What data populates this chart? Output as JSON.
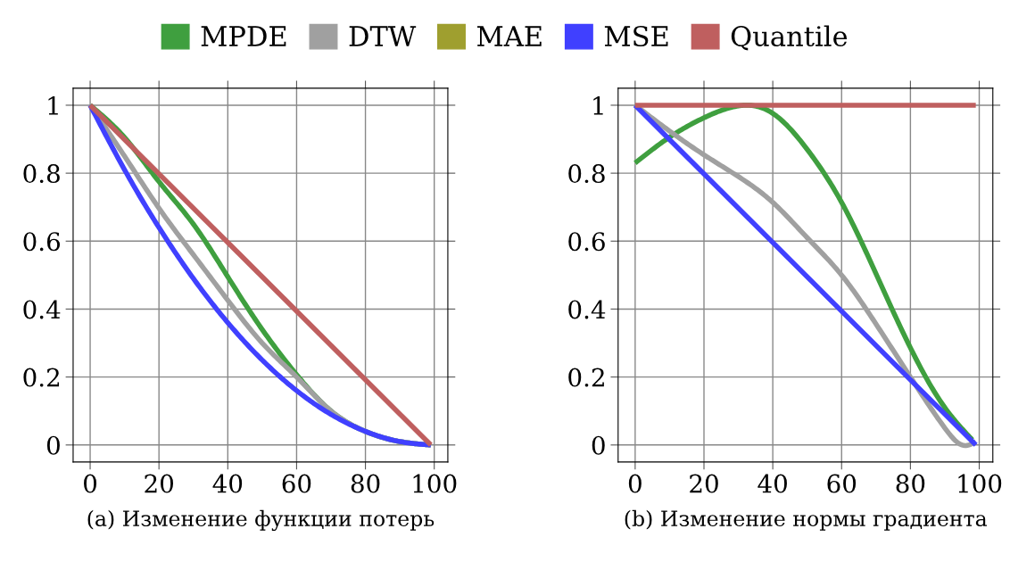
{
  "chart_data": [
    {
      "type": "line",
      "xlabel": "(a) Изменение функции потерь",
      "legend": "top",
      "grid": true,
      "line_style": "solid",
      "xlim": [
        -4.95,
        103.95
      ],
      "ylim": [
        -0.05,
        1.05
      ],
      "xticks": [
        0,
        20,
        40,
        60,
        80,
        100
      ],
      "yticks": [
        0,
        0.2,
        0.4,
        0.6,
        0.8,
        1
      ],
      "series": [
        {
          "name": "MPDE",
          "color": "#3f9f3f",
          "x": [
            0,
            10,
            20,
            30,
            40,
            50,
            60,
            70,
            80,
            90,
            99
          ],
          "values": [
            1,
            0.905,
            0.775,
            0.65,
            0.495,
            0.34,
            0.207,
            0.1,
            0.04,
            0.01,
            0
          ]
        },
        {
          "name": "DTW",
          "color": "#a0a0a0",
          "x": [
            0,
            10,
            20,
            30,
            40,
            50,
            60,
            70,
            80,
            90,
            99
          ],
          "values": [
            1,
            0.85,
            0.697,
            0.56,
            0.426,
            0.3,
            0.2,
            0.1,
            0.04,
            0.01,
            0
          ]
        },
        {
          "name": "MAE",
          "color": "#9f9f2f"
        },
        {
          "name": "MSE",
          "color": "#4040ff",
          "x": [
            0,
            10,
            20,
            30,
            40,
            50,
            60,
            70,
            80,
            90,
            99
          ],
          "values": [
            1,
            0.81,
            0.64,
            0.49,
            0.36,
            0.25,
            0.16,
            0.09,
            0.04,
            0.01,
            0
          ]
        },
        {
          "name": "Quantile",
          "color": "#bf5f5f",
          "x": [
            0,
            99
          ],
          "values": [
            1,
            0
          ]
        }
      ]
    },
    {
      "type": "line",
      "xlabel": "(b) Изменение нормы градиента",
      "grid": true,
      "line_style": "solid",
      "xlim": [
        -4.95,
        103.95
      ],
      "ylim": [
        -0.05,
        1.05
      ],
      "xticks": [
        0,
        20,
        40,
        60,
        80,
        100
      ],
      "yticks": [
        0,
        0.2,
        0.4,
        0.6,
        0.8,
        1
      ],
      "series": [
        {
          "color": "#3f9f3f",
          "x": [
            0,
            10,
            20,
            30,
            32,
            40,
            50,
            60,
            70,
            80,
            90,
            98
          ],
          "values": [
            0.83,
            0.906,
            0.963,
            0.998,
            1,
            0.976,
            0.87,
            0.714,
            0.504,
            0.286,
            0.11,
            0.015
          ]
        },
        {
          "color": "#a0a0a0",
          "x": [
            0,
            10,
            20,
            30,
            40,
            50,
            60,
            70,
            80,
            90,
            95,
            97,
            99
          ],
          "values": [
            1,
            0.924,
            0.854,
            0.79,
            0.714,
            0.61,
            0.5,
            0.356,
            0.2,
            0.05,
            0.0,
            0.0,
            0.01
          ]
        },
        {
          "color": "#4040ff",
          "x": [
            0,
            99
          ],
          "values": [
            1,
            0
          ]
        },
        {
          "color": "#bf5f5f",
          "x": [
            0,
            99
          ],
          "values": [
            1,
            1
          ]
        }
      ]
    }
  ]
}
